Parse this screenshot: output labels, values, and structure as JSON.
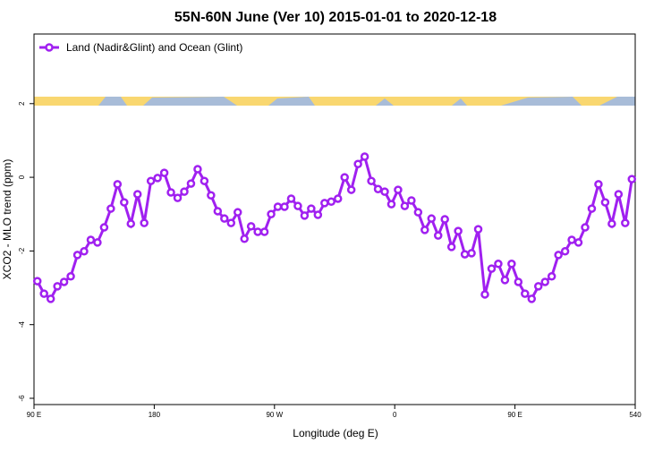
{
  "chart_data": {
    "type": "line",
    "title": "55N-60N June (Ver 10)   2015-01-01 to 2020-12-18",
    "x_label": "Longitude (deg E)",
    "y_label": "XCO2 - MLO trend (ppm)",
    "xlim": [
      90,
      540
    ],
    "ylim": [
      -6.17,
      3.89
    ],
    "xticks": [
      {
        "value": 90,
        "label": "90 E"
      },
      180,
      {
        "value": 270,
        "label": "90 W"
      },
      {
        "value": 360,
        "label": "0"
      },
      {
        "value": 450,
        "label": "90 E"
      },
      540
    ],
    "yticks": [
      2,
      0,
      -2,
      -4,
      -6
    ],
    "legend": "top-left",
    "x": [
      92.5,
      97.5,
      102.5,
      107.5,
      112.5,
      117.5,
      122.5,
      127.5,
      132.5,
      137.5,
      142.5,
      147.5,
      152.5,
      157.5,
      162.5,
      167.5,
      172.5,
      177.5,
      182.5,
      187.5,
      192.5,
      197.5,
      202.5,
      207.5,
      212.5,
      217.5,
      222.5,
      227.5,
      232.5,
      237.5,
      242.5,
      247.5,
      252.5,
      257.5,
      262.5,
      267.5,
      272.5,
      277.5,
      282.5,
      287.5,
      292.5,
      297.5,
      302.5,
      307.5,
      312.5,
      317.5,
      322.5,
      327.5,
      332.5,
      337.5,
      342.5,
      347.5,
      352.5,
      357.5,
      362.5,
      367.5,
      372.5,
      377.5,
      382.5,
      387.5,
      392.5,
      397.5,
      402.5,
      407.5,
      412.5,
      417.5,
      422.5,
      427.5,
      432.5,
      437.5,
      442.5,
      447.5,
      452.5,
      457.5,
      462.5,
      467.5,
      472.5,
      477.5,
      482.5,
      487.5,
      492.5,
      497.5,
      502.5,
      507.5,
      512.5,
      517.5,
      522.5,
      527.5,
      532.5,
      537.5
    ],
    "series": [
      {
        "name": "Land (Nadir&Glint) and Ocean (Glint)",
        "color": "#a020f0",
        "values": [
          -2.82,
          -3.16,
          -3.3,
          -2.96,
          -2.84,
          -2.69,
          -2.11,
          -2.01,
          -1.7,
          -1.77,
          -1.36,
          -0.85,
          -0.19,
          -0.68,
          -1.26,
          -0.46,
          -1.24,
          -0.1,
          -0.02,
          0.12,
          -0.41,
          -0.56,
          -0.39,
          -0.17,
          0.22,
          -0.1,
          -0.49,
          -0.92,
          -1.12,
          -1.24,
          -0.95,
          -1.67,
          -1.33,
          -1.48,
          -1.48,
          -1.0,
          -0.8,
          -0.8,
          -0.58,
          -0.78,
          -1.04,
          -0.85,
          -1.02,
          -0.7,
          -0.66,
          -0.58,
          0.0,
          -0.34,
          0.36,
          0.56,
          -0.1,
          -0.32,
          -0.39,
          -0.73,
          -0.34,
          -0.78,
          -0.63,
          -0.95,
          -1.43,
          -1.12,
          -1.58,
          -1.14,
          -1.89,
          -1.46,
          -2.09,
          -2.06,
          -1.41,
          -3.18,
          -2.48,
          -2.35,
          -2.79,
          -2.35,
          -2.84,
          -3.16,
          -3.3,
          -2.96,
          -2.84,
          -2.69,
          -2.11,
          -2.01,
          -1.7,
          -1.77,
          -1.36,
          -0.85,
          -0.19,
          -0.68,
          -1.26,
          -0.46,
          -1.24,
          -0.05
        ]
      }
    ]
  }
}
